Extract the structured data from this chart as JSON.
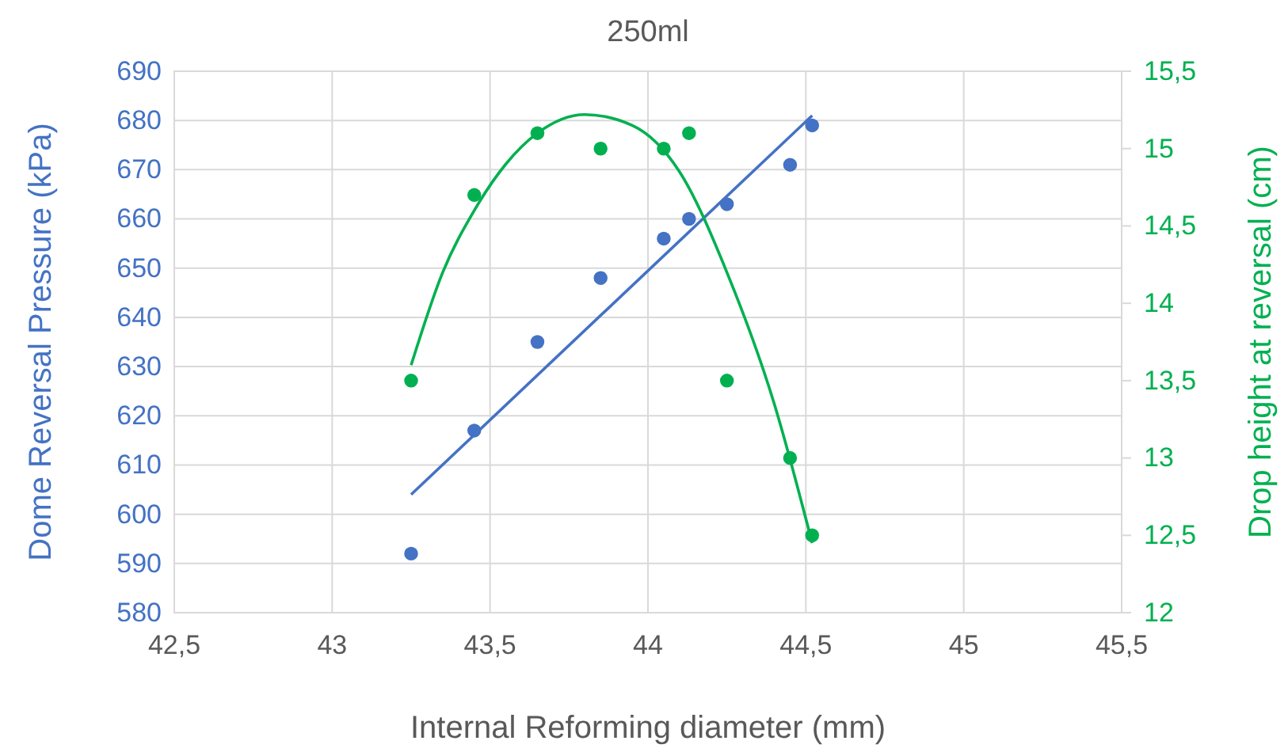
{
  "chart_data": {
    "type": "scatter",
    "title": "250ml",
    "xlabel": "Internal Reforming diameter (mm)",
    "ylabel": "Dome Reversal Pressure (kPa)",
    "y2label": "Drop height at reversal (cm)",
    "xlim": [
      42.5,
      45.5
    ],
    "xticks": [
      {
        "value": 42.5,
        "label": "42,5"
      },
      43,
      {
        "value": 43.5,
        "label": "43,5"
      },
      44,
      {
        "value": 44.5,
        "label": "44,5"
      },
      45,
      {
        "value": 45.5,
        "label": "45,5"
      }
    ],
    "ylim": [
      580,
      690
    ],
    "yticks": [
      580,
      590,
      600,
      610,
      620,
      630,
      640,
      650,
      660,
      670,
      680,
      690
    ],
    "y2lim": [
      12,
      15.5
    ],
    "y2ticks": [
      12,
      {
        "value": 12.5,
        "label": "12,5"
      },
      13,
      {
        "value": 13.5,
        "label": "13,5"
      },
      14,
      {
        "value": 14.5,
        "label": "14,5"
      },
      15,
      {
        "value": 15.5,
        "label": "15,5"
      }
    ],
    "grid": true,
    "marker": "circle",
    "series": [
      {
        "color": "#4472c4",
        "x": [
          43.25,
          43.45,
          43.65,
          43.85,
          44.05,
          44.13,
          44.25,
          44.45,
          44.52
        ],
        "values": [
          592,
          617,
          635,
          648,
          656,
          660,
          663,
          671,
          679
        ]
      },
      {
        "axis": "y2",
        "color": "#00b050",
        "x": [
          43.25,
          43.45,
          43.65,
          43.85,
          44.05,
          44.13,
          44.25,
          44.45,
          44.52
        ],
        "values": [
          13.5,
          14.7,
          15.1,
          15.0,
          15.0,
          15.1,
          13.5,
          13.0,
          12.5
        ]
      },
      {
        "type": "line",
        "color": "#4472c4",
        "marker": "none",
        "x": [
          43.25,
          44.52
        ],
        "values": [
          604,
          681
        ]
      },
      {
        "type": "line",
        "axis": "y2",
        "color": "#00b050",
        "marker": "none",
        "x": [
          43.25,
          43.35,
          43.45,
          43.55,
          43.65,
          43.8,
          43.95,
          44.1,
          44.25,
          44.4,
          44.52
        ],
        "values": [
          13.6,
          14.2,
          14.6,
          14.9,
          15.1,
          15.22,
          15.15,
          14.85,
          14.2,
          13.35,
          12.45
        ]
      }
    ]
  }
}
